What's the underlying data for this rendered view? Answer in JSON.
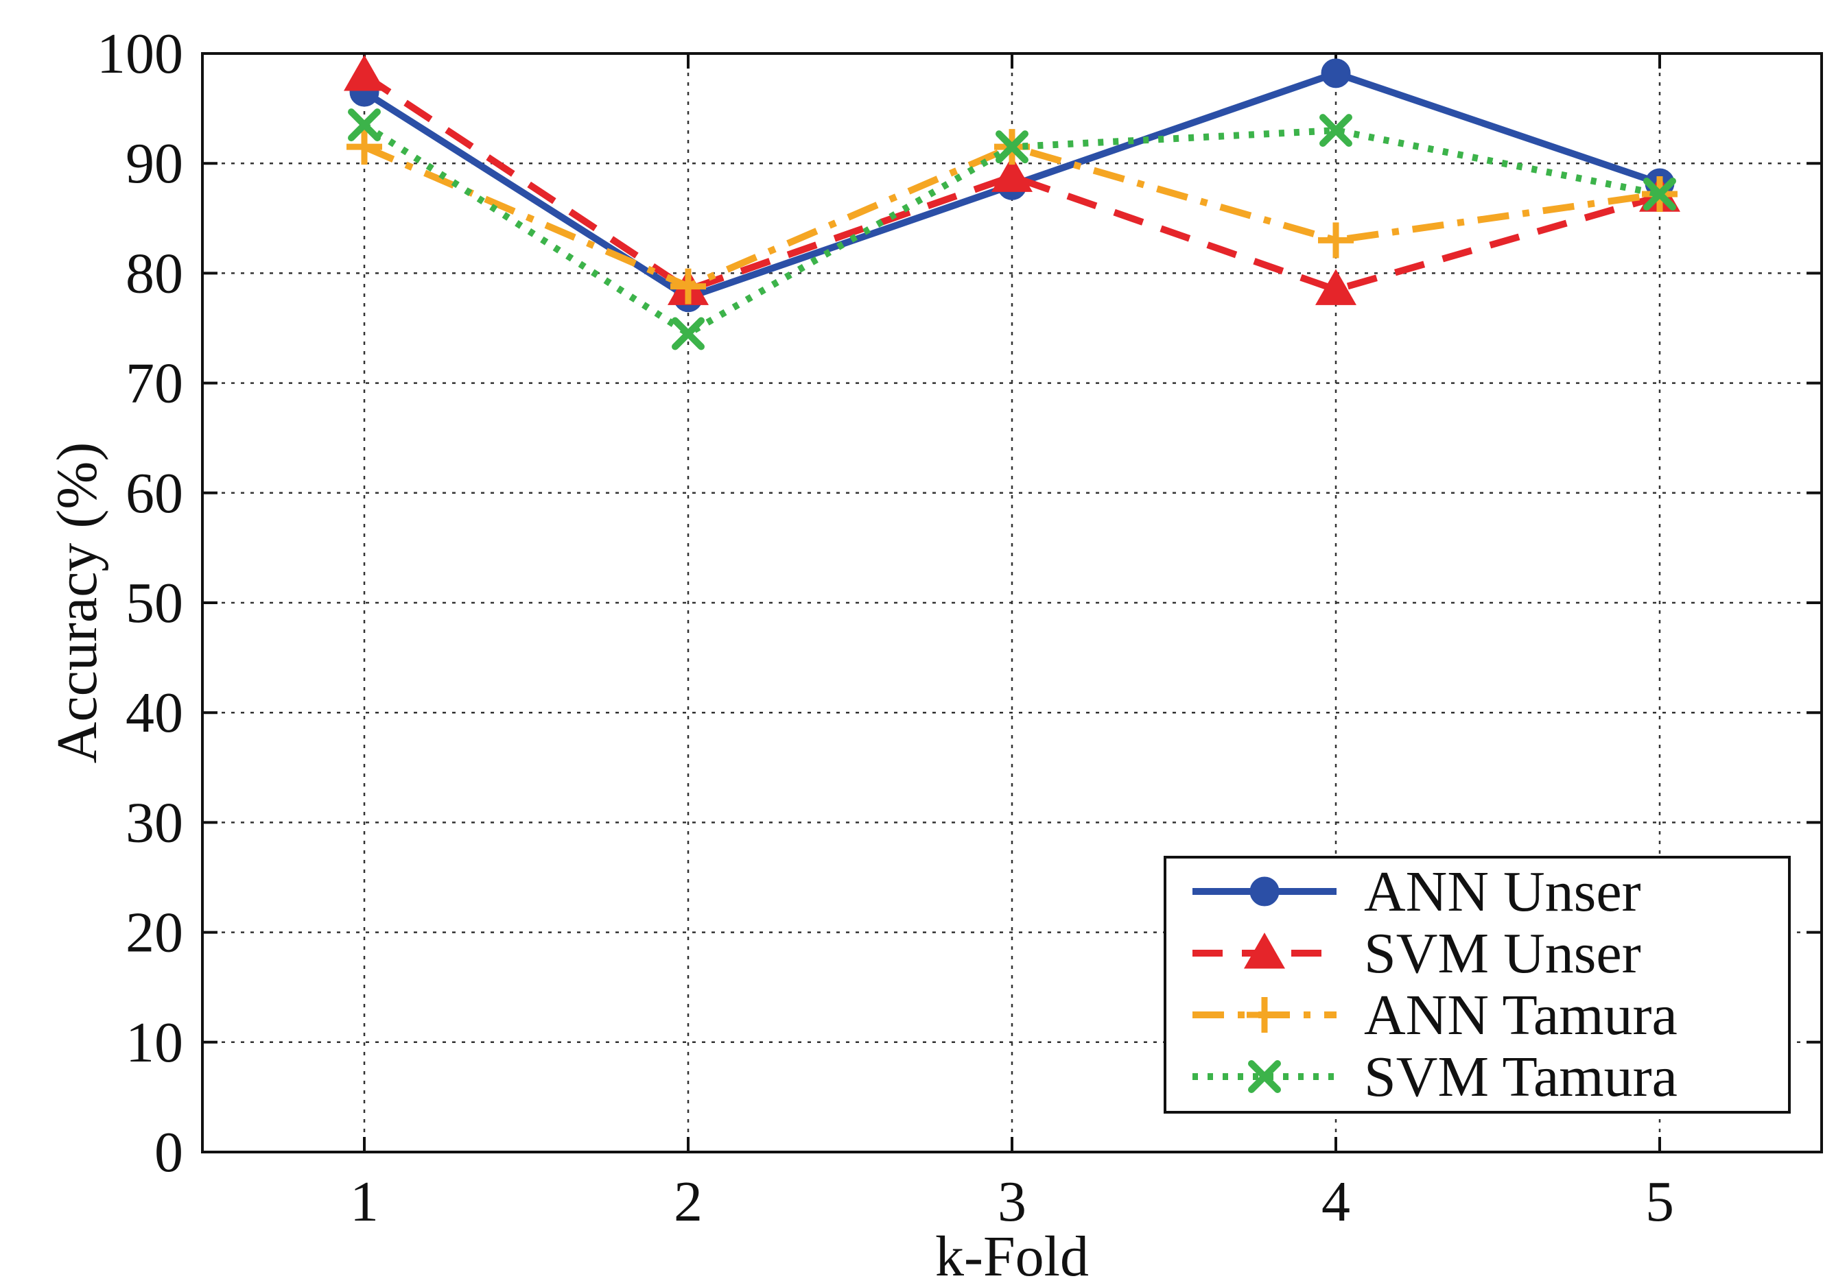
{
  "chart_data": {
    "type": "line",
    "title": "",
    "xlabel": "k-Fold",
    "ylabel": "Accuracy (%)",
    "x": [
      1,
      2,
      3,
      4,
      5
    ],
    "x_ticks": [
      "1",
      "2",
      "3",
      "4",
      "5"
    ],
    "xlim": [
      0.5,
      5.5
    ],
    "y_ticks": [
      "0",
      "10",
      "20",
      "30",
      "40",
      "50",
      "60",
      "70",
      "80",
      "90",
      "100"
    ],
    "ylim": [
      0,
      100
    ],
    "grid": true,
    "legend_position": "bottom-right",
    "series": [
      {
        "name": "ANN Unser",
        "values": [
          96.5,
          77.8,
          88.0,
          98.2,
          88.2
        ],
        "color": "#2b4fa6",
        "marker": "circle",
        "dash": "solid"
      },
      {
        "name": "SVM Unser",
        "values": [
          98.0,
          78.5,
          88.8,
          78.5,
          87.0
        ],
        "color": "#e5252a",
        "marker": "triangle",
        "dash": "dashed"
      },
      {
        "name": "ANN Tamura",
        "values": [
          91.5,
          78.8,
          91.5,
          83.0,
          87.2
        ],
        "color": "#f5a623",
        "marker": "plus",
        "dash": "dashdot"
      },
      {
        "name": "SVM Tamura",
        "values": [
          93.5,
          74.5,
          91.5,
          93.0,
          87.2
        ],
        "color": "#3cb34a",
        "marker": "x",
        "dash": "dotted"
      }
    ]
  }
}
